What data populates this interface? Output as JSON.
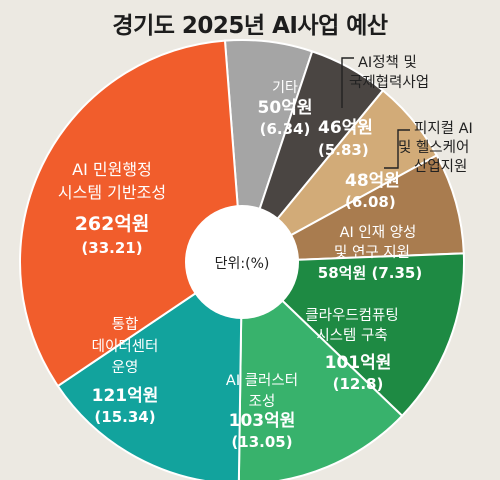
{
  "chart_data": {
    "type": "donut",
    "title": "경기도 2025년 AI사업 예산",
    "center_label": "단위:(%)",
    "slices": [
      {
        "name": "기타",
        "amount": "50억원",
        "percent": "(6.34)",
        "value": 6.34,
        "color": "#a5a5a5"
      },
      {
        "name": "AI정책 및 국제협력사업",
        "amount": "46억원",
        "percent": "(5.83)",
        "value": 5.83,
        "color": "#4a4542"
      },
      {
        "name": "피지컬 AI 및 헬스케어 산업지원",
        "amount": "48억원",
        "percent": "(6.08)",
        "value": 6.08,
        "color": "#d2ab78"
      },
      {
        "name": "AI 인재 양성 및 연구 지원",
        "amount": "58억원",
        "percent": "(7.35)",
        "value": 7.35,
        "color": "#a97c4f"
      },
      {
        "name": "클라우드컴퓨팅 시스템 구축",
        "amount": "101억원",
        "percent": "(12.8)",
        "value": 12.8,
        "color": "#1e8a43"
      },
      {
        "name": "AI 클러스터 조성",
        "amount": "103억원",
        "percent": "(13.05)",
        "value": 13.05,
        "color": "#38b26c"
      },
      {
        "name": "통합 데이터센터 운영",
        "amount": "121억원",
        "percent": "(15.34)",
        "value": 15.34,
        "color": "#12a39d"
      },
      {
        "name": "AI 민원행정 시스템 기반조성",
        "amount": "262억원",
        "percent": "(33.21)",
        "value": 33.21,
        "color": "#f15d2c"
      }
    ]
  }
}
